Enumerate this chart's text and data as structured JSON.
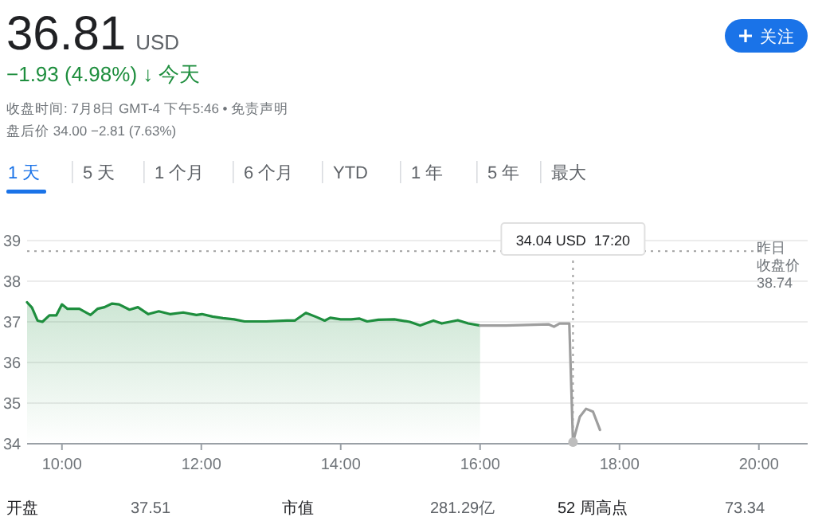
{
  "chart_data": {
    "type": "area",
    "title": "36.81 USD",
    "subtitle": "−1.93 (4.98%) ↓ 今天",
    "annotations": [
      "收盘时间: 7月8日 GMT-4 下午5:46 • 免责声明",
      "盘后价 34.00 −2.81 (7.63%)",
      "1 天",
      "5 天",
      "1 个月",
      "6 个月",
      "YTD",
      "1 年",
      "5 年",
      "最大",
      "关注",
      "开盘",
      "37.51",
      "市值",
      "281.29亿",
      "52 周高点",
      "73.34",
      "38.74",
      {
        "text": "34.04 USD  17:20",
        "x": 17.333,
        "y": 34.04
      }
    ],
    "series": [
      {
        "color": "#1e8e3e",
        "x": [
          9.5,
          9.57,
          9.65,
          9.72,
          9.82,
          9.92,
          10.0,
          10.08,
          10.25,
          10.41,
          10.51,
          10.61,
          10.72,
          10.82,
          10.97,
          11.09,
          11.24,
          11.39,
          11.55,
          11.74,
          11.93,
          12.01,
          12.16,
          12.31,
          12.47,
          12.62,
          12.93,
          13.23,
          13.34,
          13.5,
          13.65,
          13.77,
          13.85,
          14.0,
          14.15,
          14.27,
          14.38,
          14.54,
          14.77,
          14.99,
          15.14,
          15.33,
          15.45,
          15.68,
          15.83,
          16.0
        ],
        "values": [
          37.48,
          37.35,
          37.03,
          37.0,
          37.16,
          37.16,
          37.43,
          37.32,
          37.32,
          37.17,
          37.32,
          37.36,
          37.45,
          37.43,
          37.3,
          37.36,
          37.19,
          37.26,
          37.19,
          37.23,
          37.17,
          37.19,
          37.13,
          37.09,
          37.06,
          37.01,
          37.01,
          37.03,
          37.03,
          37.22,
          37.12,
          37.03,
          37.1,
          37.06,
          37.06,
          37.08,
          37.01,
          37.05,
          37.06,
          37.0,
          36.91,
          37.03,
          36.96,
          37.04,
          36.96,
          36.91
        ]
      },
      {
        "type": "line",
        "color": "#9e9e9e",
        "x": [
          16.0,
          16.37,
          16.98,
          17.06,
          17.14,
          17.28,
          17.333,
          17.43,
          17.52,
          17.62,
          17.72
        ],
        "values": [
          36.91,
          36.91,
          36.94,
          36.88,
          36.96,
          36.96,
          34.04,
          34.66,
          34.86,
          34.79,
          34.34
        ]
      }
    ],
    "xlim": [
      9.5,
      20.7
    ],
    "ylim": [
      34,
      39
    ],
    "xticks": [
      {
        "value": 10,
        "label": "10:00"
      },
      {
        "value": 12,
        "label": "12:00"
      },
      {
        "value": 14,
        "label": "14:00"
      },
      {
        "value": 16,
        "label": "16:00"
      },
      {
        "value": 18,
        "label": "18:00"
      },
      {
        "value": 20,
        "label": "20:00"
      }
    ],
    "yticks": [
      34,
      35,
      36,
      37,
      38,
      39
    ],
    "grid": "y",
    "marker": "none",
    "line_style": "solid",
    "ref_lines": [
      {
        "axis": "y",
        "value": 38.74,
        "label": "昨日收盘价",
        "line_style": "dotted",
        "color": "#9e9e9e"
      }
    ]
  }
}
